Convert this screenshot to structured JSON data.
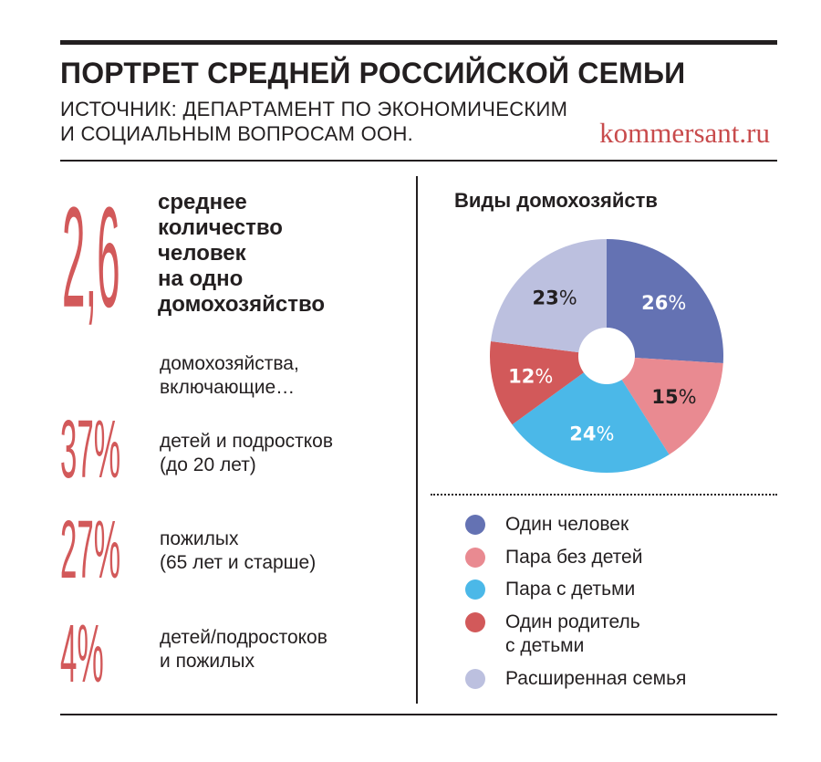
{
  "header": {
    "title": "ПОРТРЕТ СРЕДНЕЙ РОССИЙСКОЙ СЕМЬИ",
    "source_line1": "ИСТОЧНИК: ДЕПАРТАМЕНТ ПО ЭКОНОМИЧЕСКИМ",
    "source_line2": "И СОЦИАЛЬНЫМ ВОПРОСАМ ООН.",
    "brand": "kommersant.ru"
  },
  "stats": {
    "avg_value": "2,6",
    "avg_label_1": "среднее",
    "avg_label_2": "количество",
    "avg_label_3": "человек",
    "avg_label_4": "на одно",
    "avg_label_5": "домохозяйство",
    "including_1": "домохозяйства,",
    "including_2": "включающие…",
    "children_value": "37%",
    "children_label_1": "детей и подростков",
    "children_label_2": "(до 20 лет)",
    "elderly_value": "27%",
    "elderly_label_1": "пожилых",
    "elderly_label_2": "(65 лет и старше)",
    "both_value": "4%",
    "both_label_1": "детей/подростоков",
    "both_label_2": "и пожилых"
  },
  "chart_data": {
    "type": "pie",
    "style": "donut",
    "title": "Виды домохозяйств",
    "unit": "%",
    "slices": [
      {
        "label": "Один человек",
        "value": 26,
        "color": "#6472b3",
        "text_color": "#ffffff"
      },
      {
        "label": "Пара без детей",
        "value": 15,
        "color": "#e98a91",
        "text_color": "#231f20"
      },
      {
        "label": "Пара с детьми",
        "value": 24,
        "color": "#4bb8e8",
        "text_color": "#ffffff"
      },
      {
        "label": "Один родитель с детьми",
        "value": 12,
        "color": "#d2595a",
        "text_color": "#ffffff"
      },
      {
        "label": "Расширенная семья",
        "value": 23,
        "color": "#bcc0df",
        "text_color": "#231f20"
      }
    ]
  },
  "legend": {
    "items": [
      {
        "line1": "Один человек",
        "line2": "",
        "color": "#6472b3"
      },
      {
        "line1": "Пара без детей",
        "line2": "",
        "color": "#e98a91"
      },
      {
        "line1": "Пара с детьми",
        "line2": "",
        "color": "#4bb8e8"
      },
      {
        "line1": "Один родитель",
        "line2": "с детьми",
        "color": "#d2595a"
      },
      {
        "line1": "Расширенная семья",
        "line2": "",
        "color": "#bcc0df"
      }
    ]
  }
}
